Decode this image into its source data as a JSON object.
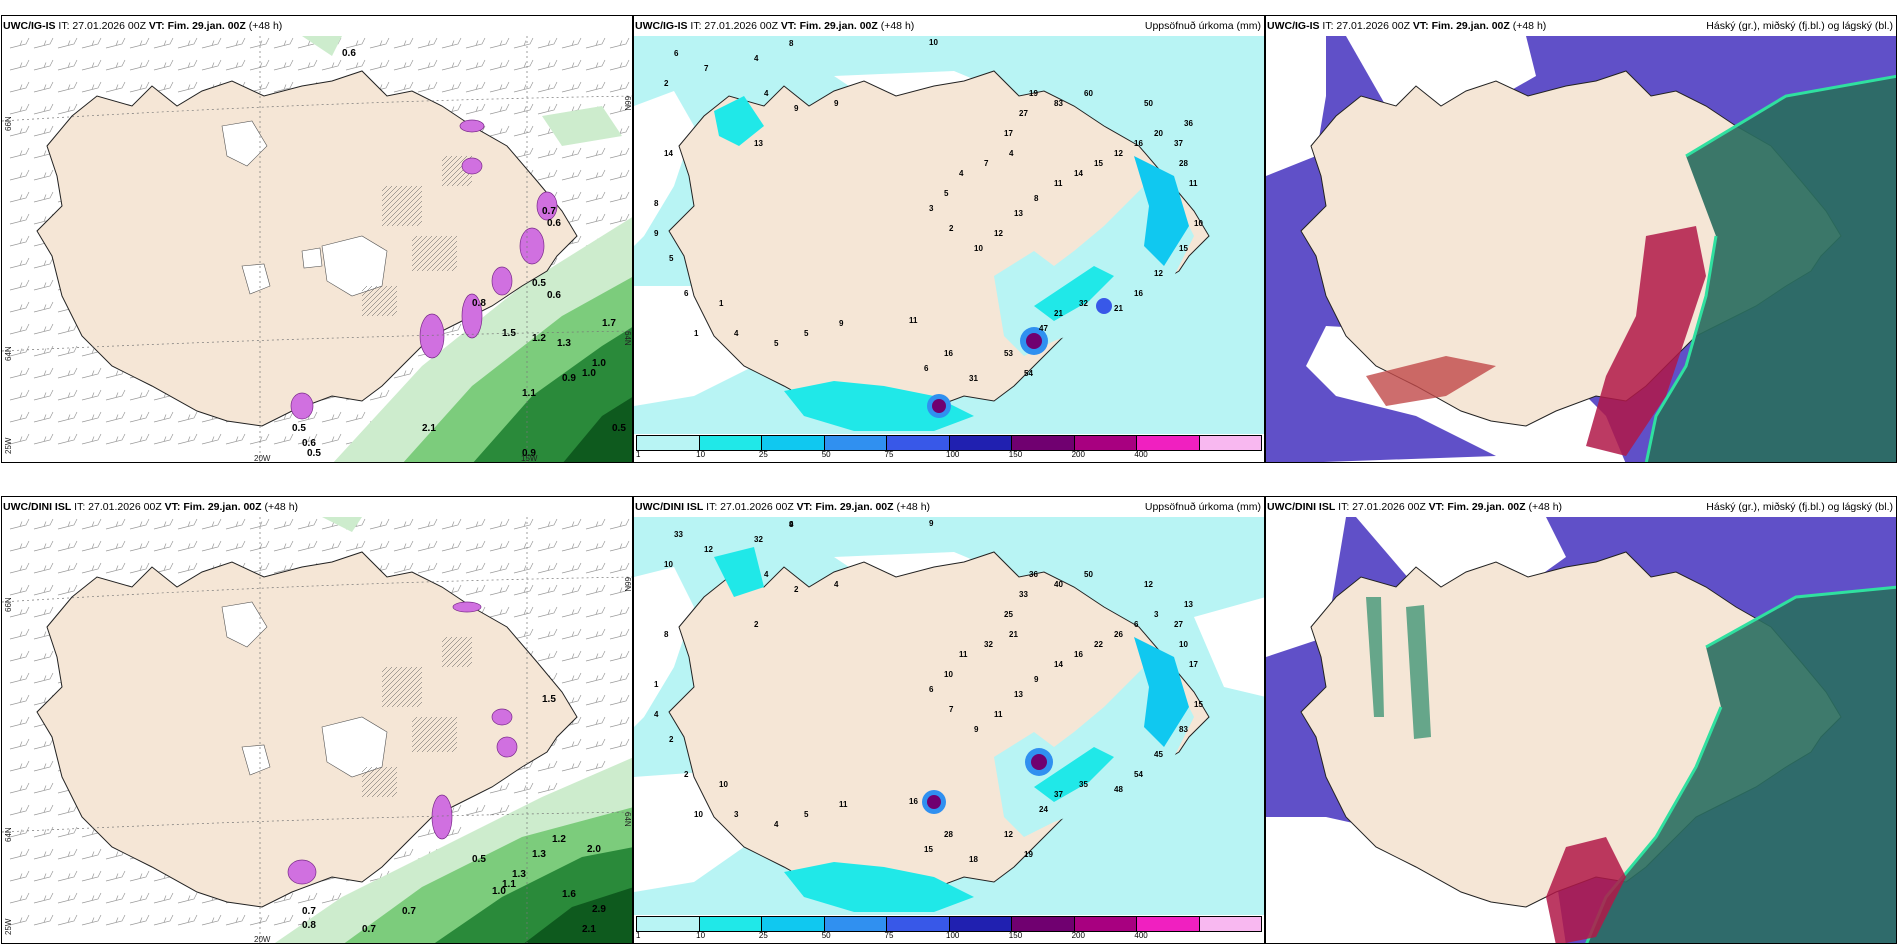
{
  "rows": [
    {
      "model": "UWC/IG-IS",
      "it_label": "IT: 27.01.2026 00Z",
      "vt_label": "VT: Fim. 29.jan. 00Z",
      "lead": "(+48 h)",
      "precip_title": "Uppsöfnuð úrkoma (mm)",
      "cloud_title": "Háský (gr.), miðský (fj.bl.) og lágský (bl.)"
    },
    {
      "model": "UWC/DINI ISL",
      "it_label": "IT: 27.01.2026 00Z",
      "vt_label": "VT: Fim. 29.jan. 00Z",
      "lead": "(+48 h)",
      "precip_title": "Uppsöfnuð úrkoma (mm)",
      "cloud_title": "Háský (gr.), miðský (fj.bl.) og lágský (bl.)"
    }
  ],
  "axis_labels": {
    "lat_66": "66N",
    "lat_64": "64N",
    "lat_25w": "25W",
    "lon_20w": "20W",
    "lon_15w": "15W"
  },
  "colorbar": {
    "ticks": [
      "1",
      "10",
      "25",
      "50",
      "75",
      "100",
      "150",
      "200",
      "400"
    ],
    "colors": [
      "#b8f4f4",
      "#20e8e8",
      "#10c8f0",
      "#3090f0",
      "#3858e8",
      "#2020b0",
      "#700070",
      "#a80080",
      "#f020c0",
      "#f8b8f0"
    ]
  },
  "colors": {
    "land": "#f5e6d6",
    "sea_precip": "#b8f4f4",
    "cloud_high": "#6050c8",
    "cloud_mid": "#b01848",
    "cloud_low": "#2a6e60",
    "snow": "#d070e0",
    "rain": "#2a8a3a"
  },
  "precip_top_labels": [
    "8",
    "10",
    "4",
    "6",
    "7",
    "2",
    "4",
    "14",
    "9",
    "13",
    "8",
    "9",
    "5",
    "6",
    "1",
    "1",
    "4",
    "5",
    "5",
    "9",
    "11",
    "16",
    "6",
    "31",
    "54",
    "53",
    "47",
    "21",
    "32",
    "21",
    "16",
    "12",
    "15",
    "10",
    "11",
    "28",
    "37",
    "36",
    "50",
    "60",
    "83",
    "19",
    "27",
    "17",
    "4",
    "7",
    "4",
    "5",
    "3",
    "2",
    "10",
    "12",
    "13",
    "8",
    "11",
    "14",
    "15",
    "12",
    "16",
    "20",
    "9"
  ],
  "precip_bottom_labels": [
    "9",
    "9",
    "32",
    "33",
    "12",
    "10",
    "4",
    "8",
    "2",
    "2",
    "1",
    "4",
    "2",
    "2",
    "10",
    "10",
    "3",
    "4",
    "5",
    "11",
    "16",
    "28",
    "15",
    "18",
    "19",
    "12",
    "24",
    "37",
    "35",
    "48",
    "54",
    "45",
    "83",
    "15",
    "17",
    "10",
    "27",
    "13",
    "12",
    "50",
    "40",
    "36",
    "33",
    "25",
    "21",
    "32",
    "11",
    "10",
    "6",
    "7",
    "9",
    "11",
    "13",
    "9",
    "14",
    "16",
    "22",
    "26",
    "6",
    "3",
    "4",
    "4"
  ],
  "rain_top_labels": [
    "0.6",
    "0.7",
    "0.6",
    "0.5",
    "0.6",
    "0.8",
    "1.7",
    "1.0",
    "0.9",
    "1.0",
    "0.5",
    "0.9",
    "1.1",
    "2.1",
    "0.5",
    "0.6",
    "0.5",
    "1.5",
    "1.2",
    "1.3"
  ],
  "rain_bottom_labels": [
    "1.5",
    "0.5",
    "1.3",
    "1.2",
    "2.0",
    "1.6",
    "2.9",
    "2.1",
    "0.7",
    "0.8",
    "0.7",
    "0.7",
    "1.0",
    "1.1",
    "1.3"
  ]
}
